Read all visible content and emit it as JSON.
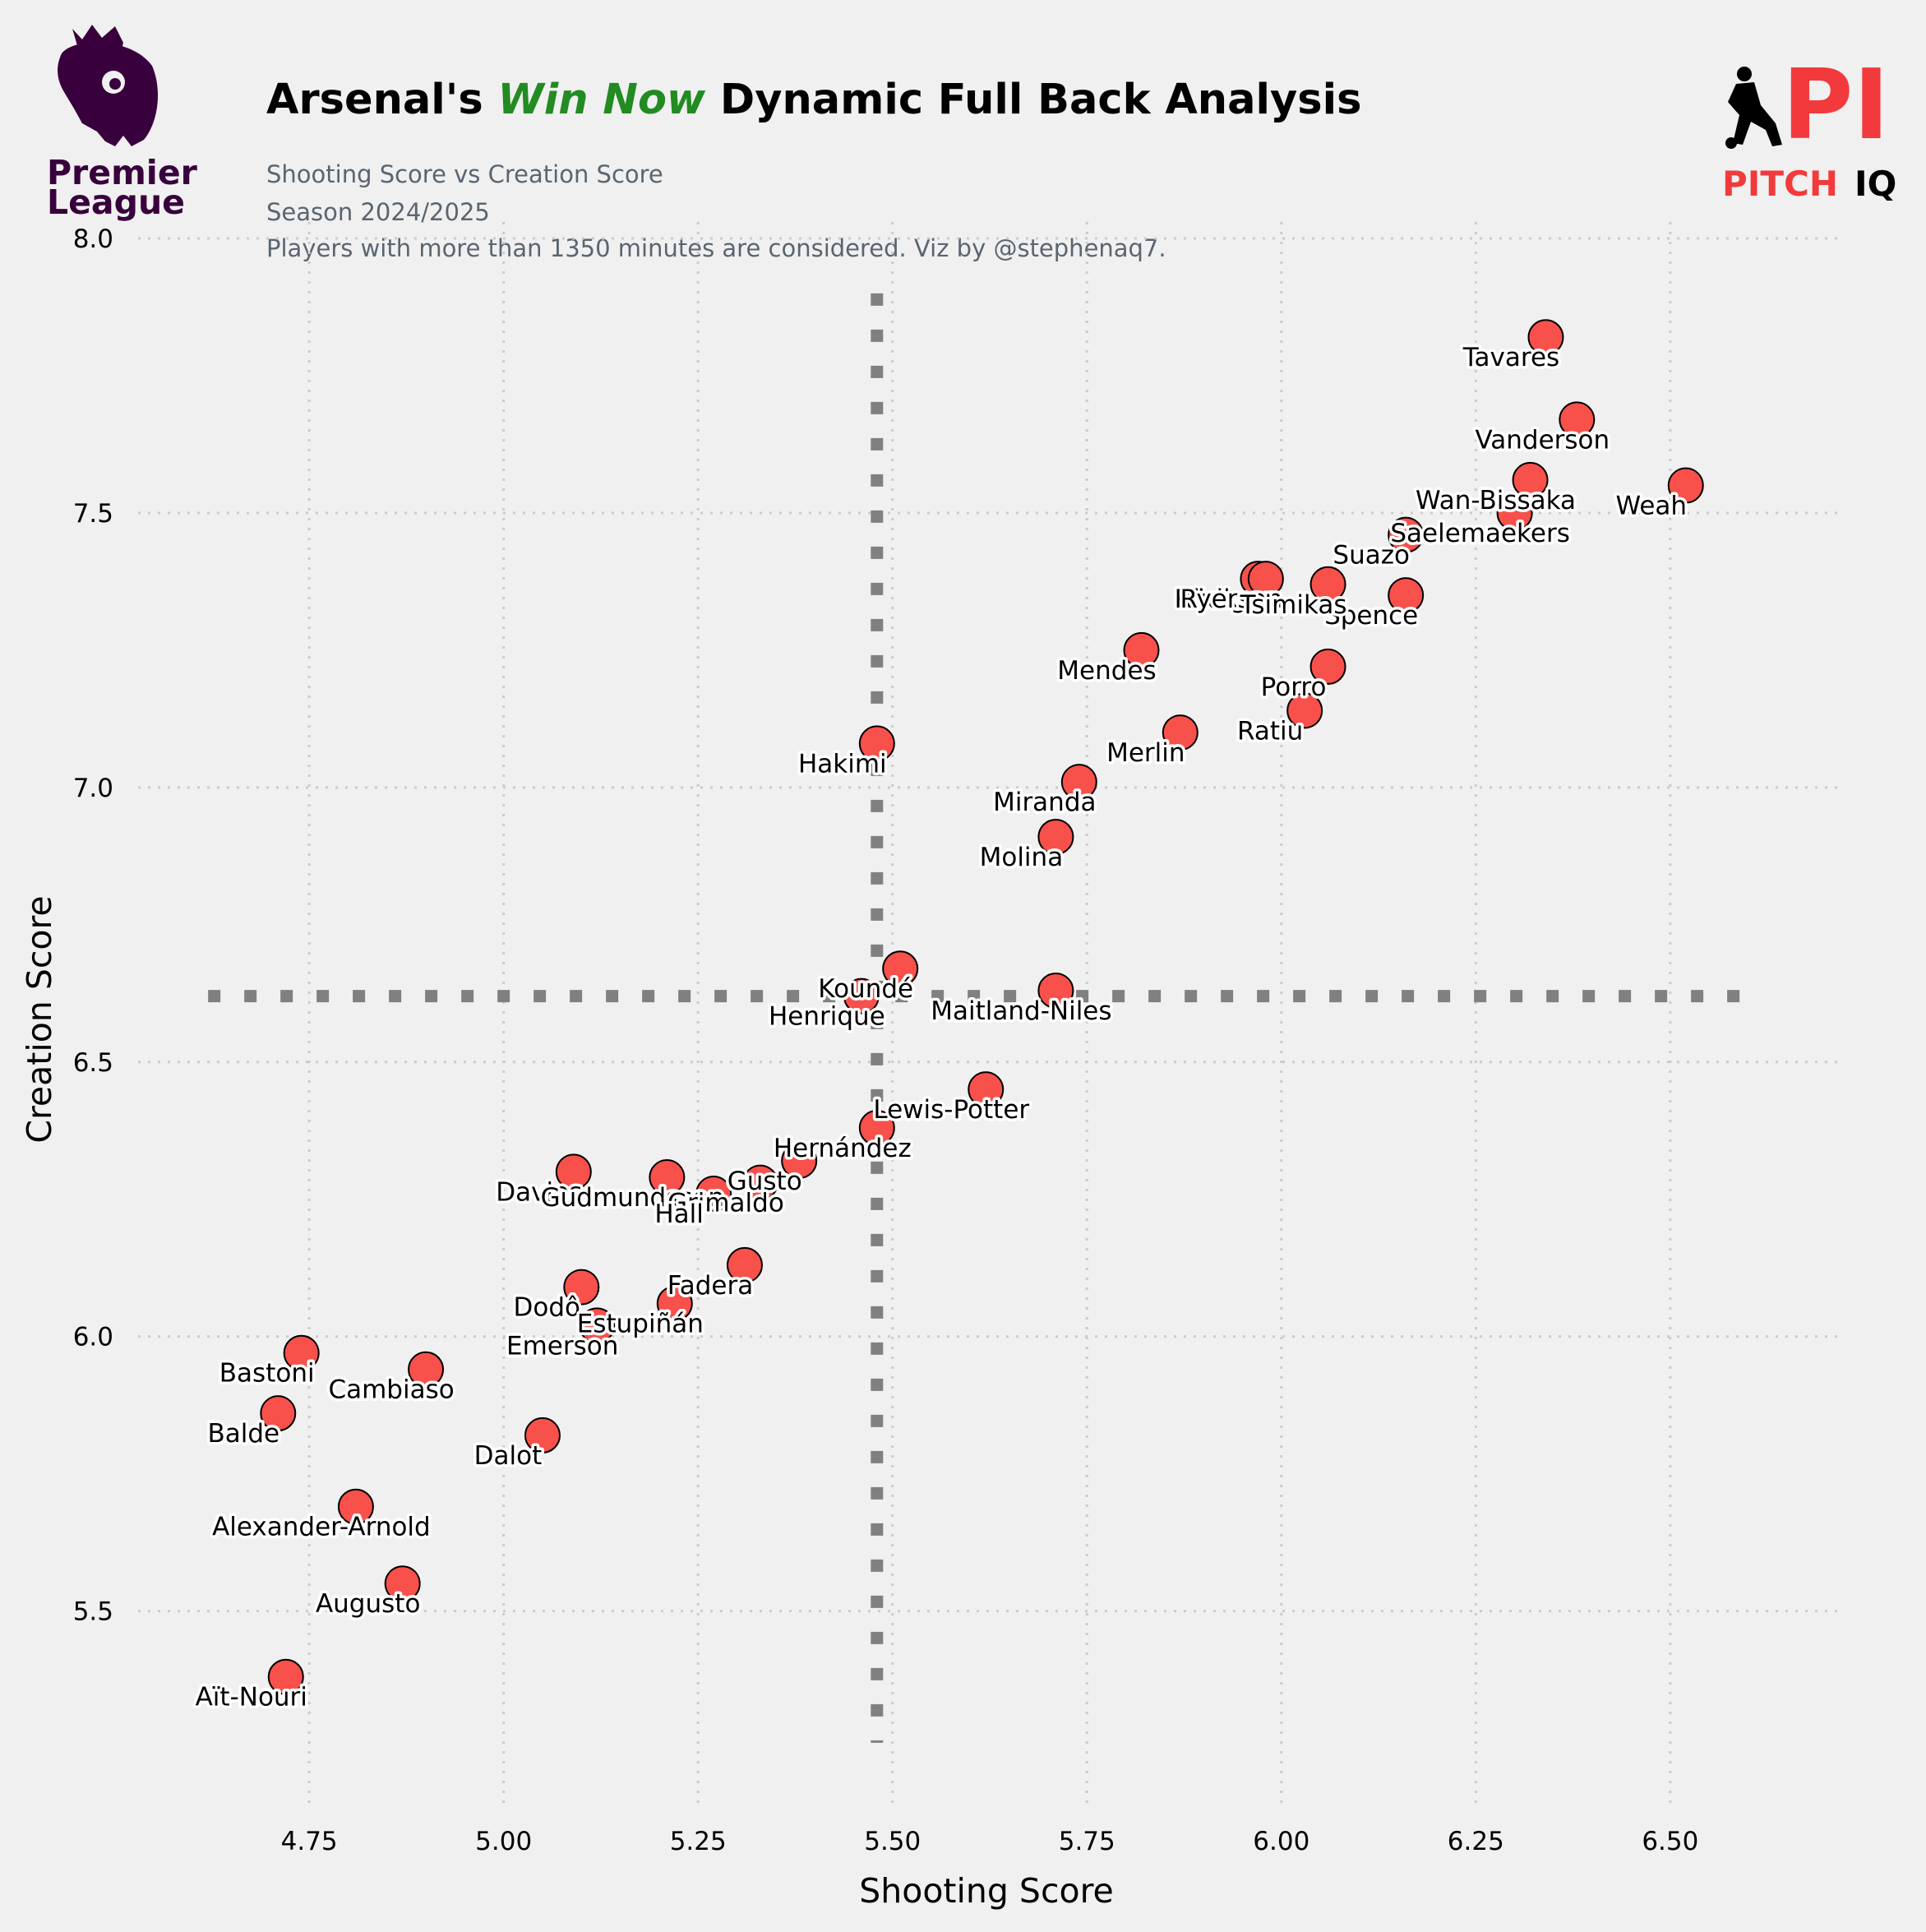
{
  "header": {
    "title_before": "Arsenal's ",
    "title_accent": "Win Now",
    "title_after": " Dynamic Full Back Analysis",
    "subtitle_lines": [
      "Shooting Score vs Creation Score",
      "Season 2024/2025",
      "Players with more than 1350 minutes are considered. Viz by @stephenaq7."
    ]
  },
  "logos": {
    "league_line1": "Premier",
    "league_line2": "League",
    "brand_pi": "PI",
    "brand_pitch": "PITCH",
    "brand_iq": "IQ"
  },
  "colors": {
    "background": "#f0f0f0",
    "point_fill": "#f8504a",
    "point_edge": "#000000",
    "accent": "#228b22",
    "median_line": "#808080",
    "league_purple": "#38003c",
    "brand_red": "#f23a3c"
  },
  "chart_data": {
    "type": "scatter",
    "xlabel": "Shooting Score",
    "ylabel": "Creation Score",
    "xlim": [
      4.53,
      6.72
    ],
    "ylim": [
      5.14,
      8.03
    ],
    "xticks": [
      "4.75",
      "5.00",
      "5.25",
      "5.50",
      "5.75",
      "6.00",
      "6.25",
      "6.50"
    ],
    "yticks": [
      "5.5",
      "6.0",
      "6.5",
      "7.0",
      "7.5",
      "8.0"
    ],
    "grid": true,
    "reference_lines": {
      "x": 5.48,
      "y": 6.62
    },
    "points": [
      {
        "name": "Tavares",
        "x": 6.34,
        "y": 7.82
      },
      {
        "name": "Vanderson",
        "x": 6.38,
        "y": 7.67
      },
      {
        "name": "Weah",
        "x": 6.52,
        "y": 7.55
      },
      {
        "name": "Wan-Bissaka",
        "x": 6.32,
        "y": 7.56
      },
      {
        "name": "Saelemaekers",
        "x": 6.3,
        "y": 7.5
      },
      {
        "name": "Suazo",
        "x": 6.16,
        "y": 7.46
      },
      {
        "name": "Spence",
        "x": 6.16,
        "y": 7.35
      },
      {
        "name": "Rüdiger",
        "x": 5.97,
        "y": 7.38
      },
      {
        "name": "Ryerson",
        "x": 5.98,
        "y": 7.38
      },
      {
        "name": "Tsimikas",
        "x": 6.06,
        "y": 7.37
      },
      {
        "name": "Mendes",
        "x": 5.82,
        "y": 7.25
      },
      {
        "name": "Porro",
        "x": 6.06,
        "y": 7.22
      },
      {
        "name": "Ratiu",
        "x": 6.03,
        "y": 7.14
      },
      {
        "name": "Merlin",
        "x": 5.87,
        "y": 7.1
      },
      {
        "name": "Hakimi",
        "x": 5.48,
        "y": 7.08
      },
      {
        "name": "Miranda",
        "x": 5.74,
        "y": 7.01
      },
      {
        "name": "Molina",
        "x": 5.71,
        "y": 6.91
      },
      {
        "name": "Koundé",
        "x": 5.51,
        "y": 6.67
      },
      {
        "name": "Maitland-Niles",
        "x": 5.71,
        "y": 6.63
      },
      {
        "name": "Henrique",
        "x": 5.46,
        "y": 6.62
      },
      {
        "name": "Lewis-Potter",
        "x": 5.62,
        "y": 6.45
      },
      {
        "name": "Hernández",
        "x": 5.48,
        "y": 6.38
      },
      {
        "name": "Gusto",
        "x": 5.38,
        "y": 6.32
      },
      {
        "name": "Davies",
        "x": 5.09,
        "y": 6.3
      },
      {
        "name": "Gudmundsson",
        "x": 5.21,
        "y": 6.29
      },
      {
        "name": "Grimaldo",
        "x": 5.33,
        "y": 6.28
      },
      {
        "name": "Hall",
        "x": 5.27,
        "y": 6.26
      },
      {
        "name": "Fadera",
        "x": 5.31,
        "y": 6.13
      },
      {
        "name": "Dodô",
        "x": 5.1,
        "y": 6.09
      },
      {
        "name": "Estupiñán",
        "x": 5.22,
        "y": 6.06
      },
      {
        "name": "Emerson",
        "x": 5.12,
        "y": 6.02
      },
      {
        "name": "Bastoni",
        "x": 4.74,
        "y": 5.97
      },
      {
        "name": "Cambiaso",
        "x": 4.9,
        "y": 5.94
      },
      {
        "name": "Balde",
        "x": 4.71,
        "y": 5.86
      },
      {
        "name": "Dalot",
        "x": 5.05,
        "y": 5.82
      },
      {
        "name": "Alexander-Arnold",
        "x": 4.81,
        "y": 5.69
      },
      {
        "name": "Augusto",
        "x": 4.87,
        "y": 5.55
      },
      {
        "name": "Aït-Nouri",
        "x": 4.72,
        "y": 5.38
      }
    ]
  }
}
